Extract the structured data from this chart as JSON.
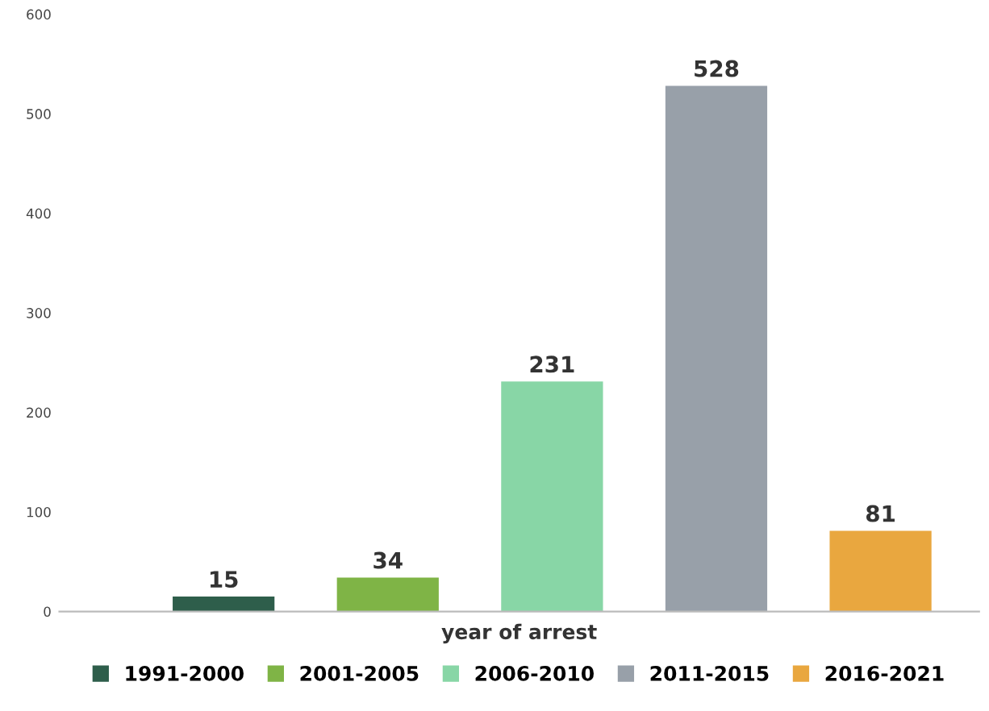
{
  "chart_data": {
    "type": "bar",
    "xlabel": "year of arrest",
    "categories": [
      null,
      null,
      null,
      null,
      null
    ],
    "series": [
      {
        "name": "1991-2000",
        "color": "#2e5e4b",
        "values": [
          15,
          null,
          null,
          null,
          null
        ]
      },
      {
        "name": "2001-2005",
        "color": "#7fb446",
        "values": [
          null,
          34,
          null,
          null,
          null
        ]
      },
      {
        "name": "2006-2010",
        "color": "#88d6a6",
        "values": [
          null,
          null,
          231,
          null,
          null
        ]
      },
      {
        "name": "2011-2015",
        "color": "#98a0a9",
        "values": [
          null,
          null,
          null,
          528,
          null
        ]
      },
      {
        "name": "2016-2021",
        "color": "#e9a73f",
        "values": [
          null,
          null,
          null,
          null,
          81
        ]
      }
    ],
    "ylim": [
      0,
      600
    ],
    "yticks": [
      0,
      100,
      200,
      300,
      400,
      500,
      600
    ],
    "data_labels": true,
    "grid": false,
    "legend": "bottom"
  }
}
